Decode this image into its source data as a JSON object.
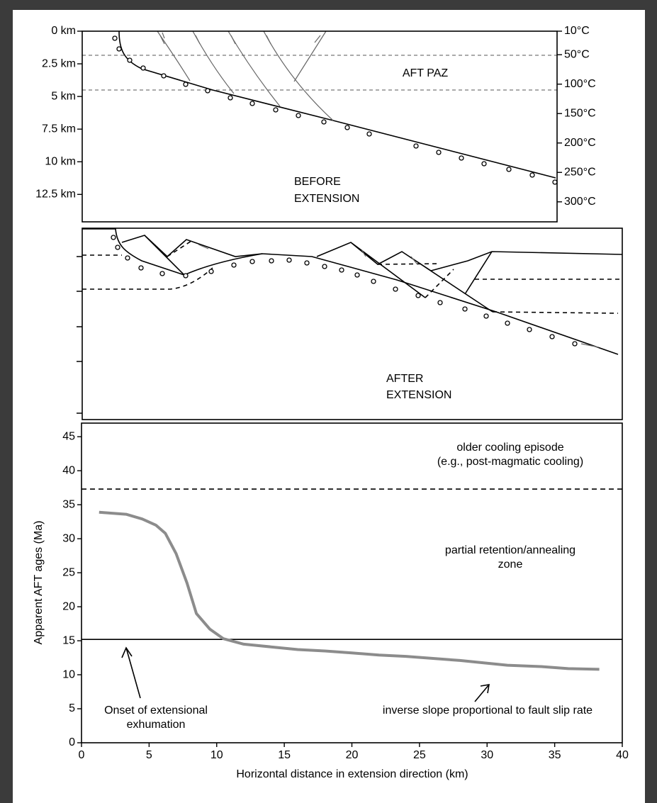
{
  "chart_data": [
    {
      "type": "section",
      "annotations": [
        "AFT PAZ",
        "BEFORE",
        "EXTENSION"
      ],
      "ylim": [
        0,
        14.6
      ],
      "y_inverted": true,
      "yticks": [
        {
          "value": 0,
          "label": "0 km"
        },
        {
          "value": 2.5,
          "label": "2.5 km"
        },
        {
          "value": 5,
          "label": "5 km"
        },
        {
          "value": 7.5,
          "label": "7.5 km"
        },
        {
          "value": 10,
          "label": "10 km"
        },
        {
          "value": 12.5,
          "label": "12.5 km"
        }
      ],
      "y2lim": [
        10,
        334
      ],
      "y2ticks": [
        {
          "value": 10,
          "label": "10°C"
        },
        {
          "value": 50,
          "label": "50°C"
        },
        {
          "value": 100,
          "label": "100°C"
        },
        {
          "value": 150,
          "label": "150°C"
        },
        {
          "value": 200,
          "label": "200°C"
        },
        {
          "value": 250,
          "label": "250°C"
        },
        {
          "value": 300,
          "label": "300°C"
        }
      ]
    },
    {
      "type": "section",
      "annotations": [
        "AFTER",
        "EXTENSION"
      ]
    },
    {
      "type": "line",
      "x": [
        1.3,
        3.3,
        4.5,
        5.5,
        6.2,
        7,
        7.8,
        8.5,
        9.5,
        10.5,
        12,
        14,
        16,
        18,
        20,
        22,
        24,
        26,
        28,
        30,
        31.5,
        34,
        36,
        38.3
      ],
      "values": [
        33.9,
        33.6,
        32.9,
        32,
        30.8,
        27.8,
        23.5,
        19,
        16.7,
        15.3,
        14.5,
        14.1,
        13.7,
        13.5,
        13.2,
        12.9,
        12.7,
        12.4,
        12.1,
        11.7,
        11.4,
        11.2,
        10.9,
        10.8
      ],
      "color": "#8c8c8c",
      "xlim": [
        0,
        40
      ],
      "xticks": [
        0,
        5,
        10,
        15,
        20,
        25,
        30,
        35,
        40
      ],
      "ylim": [
        0,
        47
      ],
      "yticks": [
        0,
        5,
        10,
        15,
        20,
        25,
        30,
        35,
        40,
        45
      ],
      "xlabel": "Horizontal distance in extension direction (km)",
      "ylabel": "Apparent AFT ages (Ma)",
      "hlines": [
        {
          "value": 37.3,
          "style": "dashed"
        },
        {
          "value": 15.2,
          "style": "solid"
        }
      ],
      "annotations": [
        "older cooling episode",
        "(e.g., post-magmatic cooling)",
        "partial retention/annealing",
        "zone",
        "Onset of extensional",
        "exhumation",
        "inverse slope proportional to fault slip rate"
      ]
    }
  ]
}
